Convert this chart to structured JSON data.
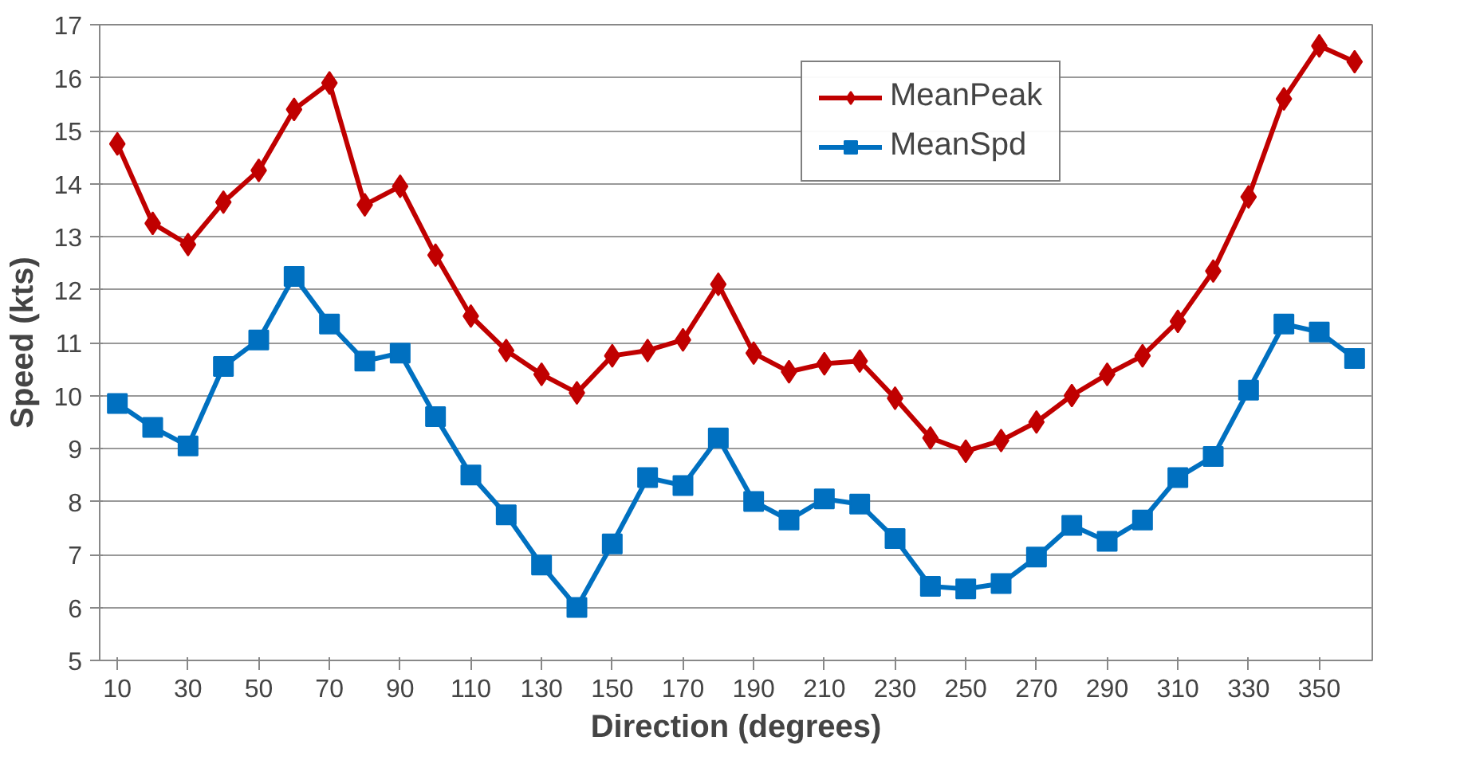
{
  "chart_data": {
    "type": "line",
    "xlabel": "Direction (degrees)",
    "ylabel": "Speed (kts)",
    "x": [
      10,
      20,
      30,
      40,
      50,
      60,
      70,
      80,
      90,
      100,
      110,
      120,
      130,
      140,
      150,
      160,
      170,
      180,
      190,
      200,
      210,
      220,
      230,
      240,
      250,
      260,
      270,
      280,
      290,
      300,
      310,
      320,
      330,
      340,
      350,
      360
    ],
    "series": [
      {
        "name": "MeanPeak",
        "color": "#c00000",
        "marker": "diamond",
        "values": [
          14.75,
          13.25,
          12.85,
          13.65,
          14.25,
          15.4,
          15.9,
          13.6,
          13.95,
          12.65,
          11.5,
          10.85,
          10.4,
          10.05,
          10.75,
          10.85,
          11.05,
          12.1,
          10.8,
          10.45,
          10.6,
          10.65,
          9.95,
          9.2,
          8.95,
          9.15,
          9.5,
          10.0,
          10.4,
          10.75,
          11.4,
          12.35,
          13.75,
          15.6,
          16.6,
          16.3
        ]
      },
      {
        "name": "MeanSpd",
        "color": "#0070c0",
        "marker": "square",
        "values": [
          9.85,
          9.4,
          9.05,
          10.55,
          11.05,
          12.25,
          11.35,
          10.65,
          10.8,
          9.6,
          8.5,
          7.75,
          6.8,
          6.0,
          7.2,
          8.45,
          8.3,
          9.2,
          8.0,
          7.65,
          8.05,
          7.95,
          7.3,
          6.4,
          6.35,
          6.45,
          6.95,
          7.55,
          7.25,
          7.65,
          8.45,
          8.85,
          10.1,
          11.35,
          11.2,
          10.7
        ]
      }
    ],
    "xlim": [
      5,
      365
    ],
    "xticks": [
      10,
      30,
      50,
      70,
      90,
      110,
      130,
      150,
      170,
      190,
      210,
      230,
      250,
      270,
      290,
      310,
      330,
      350
    ],
    "ylim": [
      5,
      17
    ],
    "yticks": [
      5,
      6,
      7,
      8,
      9,
      10,
      11,
      12,
      13,
      14,
      15,
      16,
      17
    ],
    "grid": "y",
    "legend": "top right",
    "line_style": "solid"
  }
}
